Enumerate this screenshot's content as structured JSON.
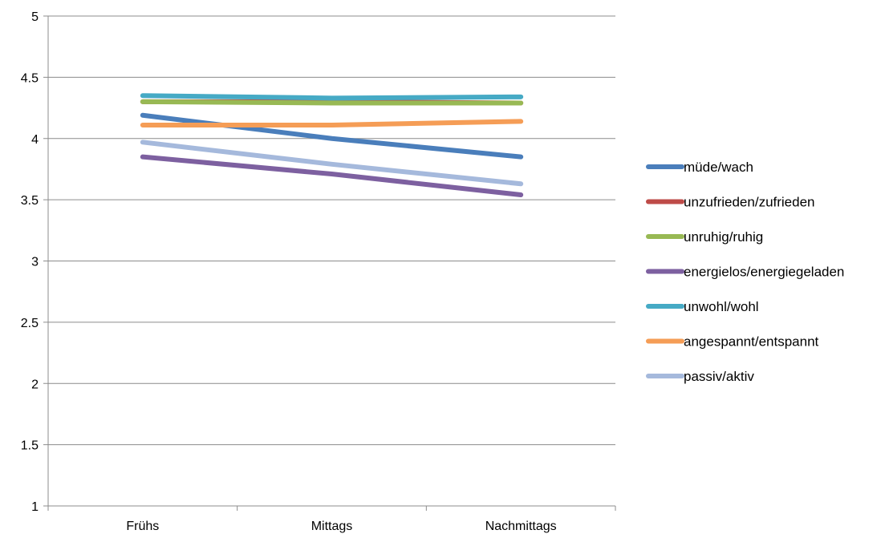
{
  "chart_data": {
    "type": "line",
    "title": "",
    "xlabel": "",
    "ylabel": "",
    "categories": [
      "Frühs",
      "Mittags",
      "Nachmittags"
    ],
    "ylim": [
      1,
      5
    ],
    "yticks": [
      1,
      1.5,
      2,
      2.5,
      3,
      3.5,
      4,
      4.5,
      5
    ],
    "ytick_labels": [
      "1",
      "1.5",
      "2",
      "2.5",
      "3",
      "3.5",
      "4",
      "4.5",
      "5"
    ],
    "grid": "horizontal",
    "legend_position": "right",
    "series": [
      {
        "name": "müde/wach",
        "color": "#4a7ebb",
        "values": [
          4.19,
          4.0,
          3.85
        ]
      },
      {
        "name": "unzufrieden/zufrieden",
        "color": "#be4b48",
        "values": [
          4.3,
          4.3,
          4.29
        ]
      },
      {
        "name": "unruhig/ruhig",
        "color": "#98b954",
        "values": [
          4.3,
          4.29,
          4.29
        ]
      },
      {
        "name": "energielos/energiegeladen",
        "color": "#7d60a0",
        "values": [
          3.85,
          3.71,
          3.54
        ]
      },
      {
        "name": "unwohl/wohl",
        "color": "#46aac5",
        "values": [
          4.35,
          4.33,
          4.34
        ]
      },
      {
        "name": "angespannt/entspannt",
        "color": "#f59d56",
        "values": [
          4.11,
          4.11,
          4.14
        ]
      },
      {
        "name": "passiv/aktiv",
        "color": "#a5b9dc",
        "values": [
          3.97,
          3.79,
          3.63
        ]
      }
    ]
  }
}
